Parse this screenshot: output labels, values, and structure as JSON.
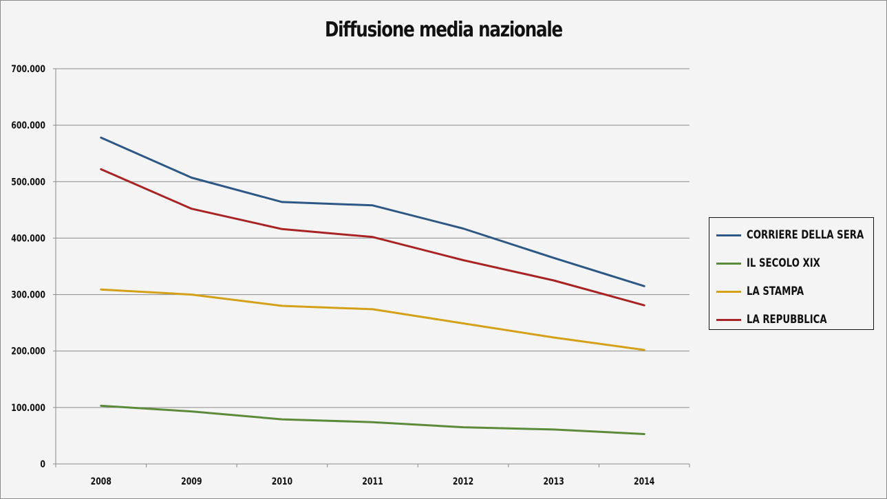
{
  "chart_data": {
    "type": "line",
    "title": "Diffusione media nazionale",
    "xlabel": "",
    "ylabel": "",
    "categories": [
      "2008",
      "2009",
      "2010",
      "2011",
      "2012",
      "2013",
      "2014"
    ],
    "ylim": [
      0,
      700000
    ],
    "yticks": [
      0,
      100000,
      200000,
      300000,
      400000,
      500000,
      600000,
      700000
    ],
    "ytick_labels": [
      "0",
      "100.000",
      "200.000",
      "300.000",
      "400.000",
      "500.000",
      "600.000",
      "700.000"
    ],
    "grid": true,
    "legend_position": "right",
    "series": [
      {
        "name": "CORRIERE DELLA SERA",
        "color": "#2d5784",
        "values": [
          578000,
          507000,
          464000,
          458000,
          417000,
          365000,
          315000
        ]
      },
      {
        "name": "IL SECOLO XIX",
        "color": "#5b8b3a",
        "values": [
          103000,
          93000,
          79000,
          74000,
          65000,
          61000,
          53000
        ]
      },
      {
        "name": "LA STAMPA",
        "color": "#d4a017",
        "values": [
          309000,
          300000,
          280000,
          274000,
          249000,
          224000,
          202000
        ]
      },
      {
        "name": "LA REPUBBLICA",
        "color": "#a82323",
        "values": [
          522000,
          452000,
          416000,
          402000,
          361000,
          325000,
          281000
        ]
      }
    ]
  }
}
